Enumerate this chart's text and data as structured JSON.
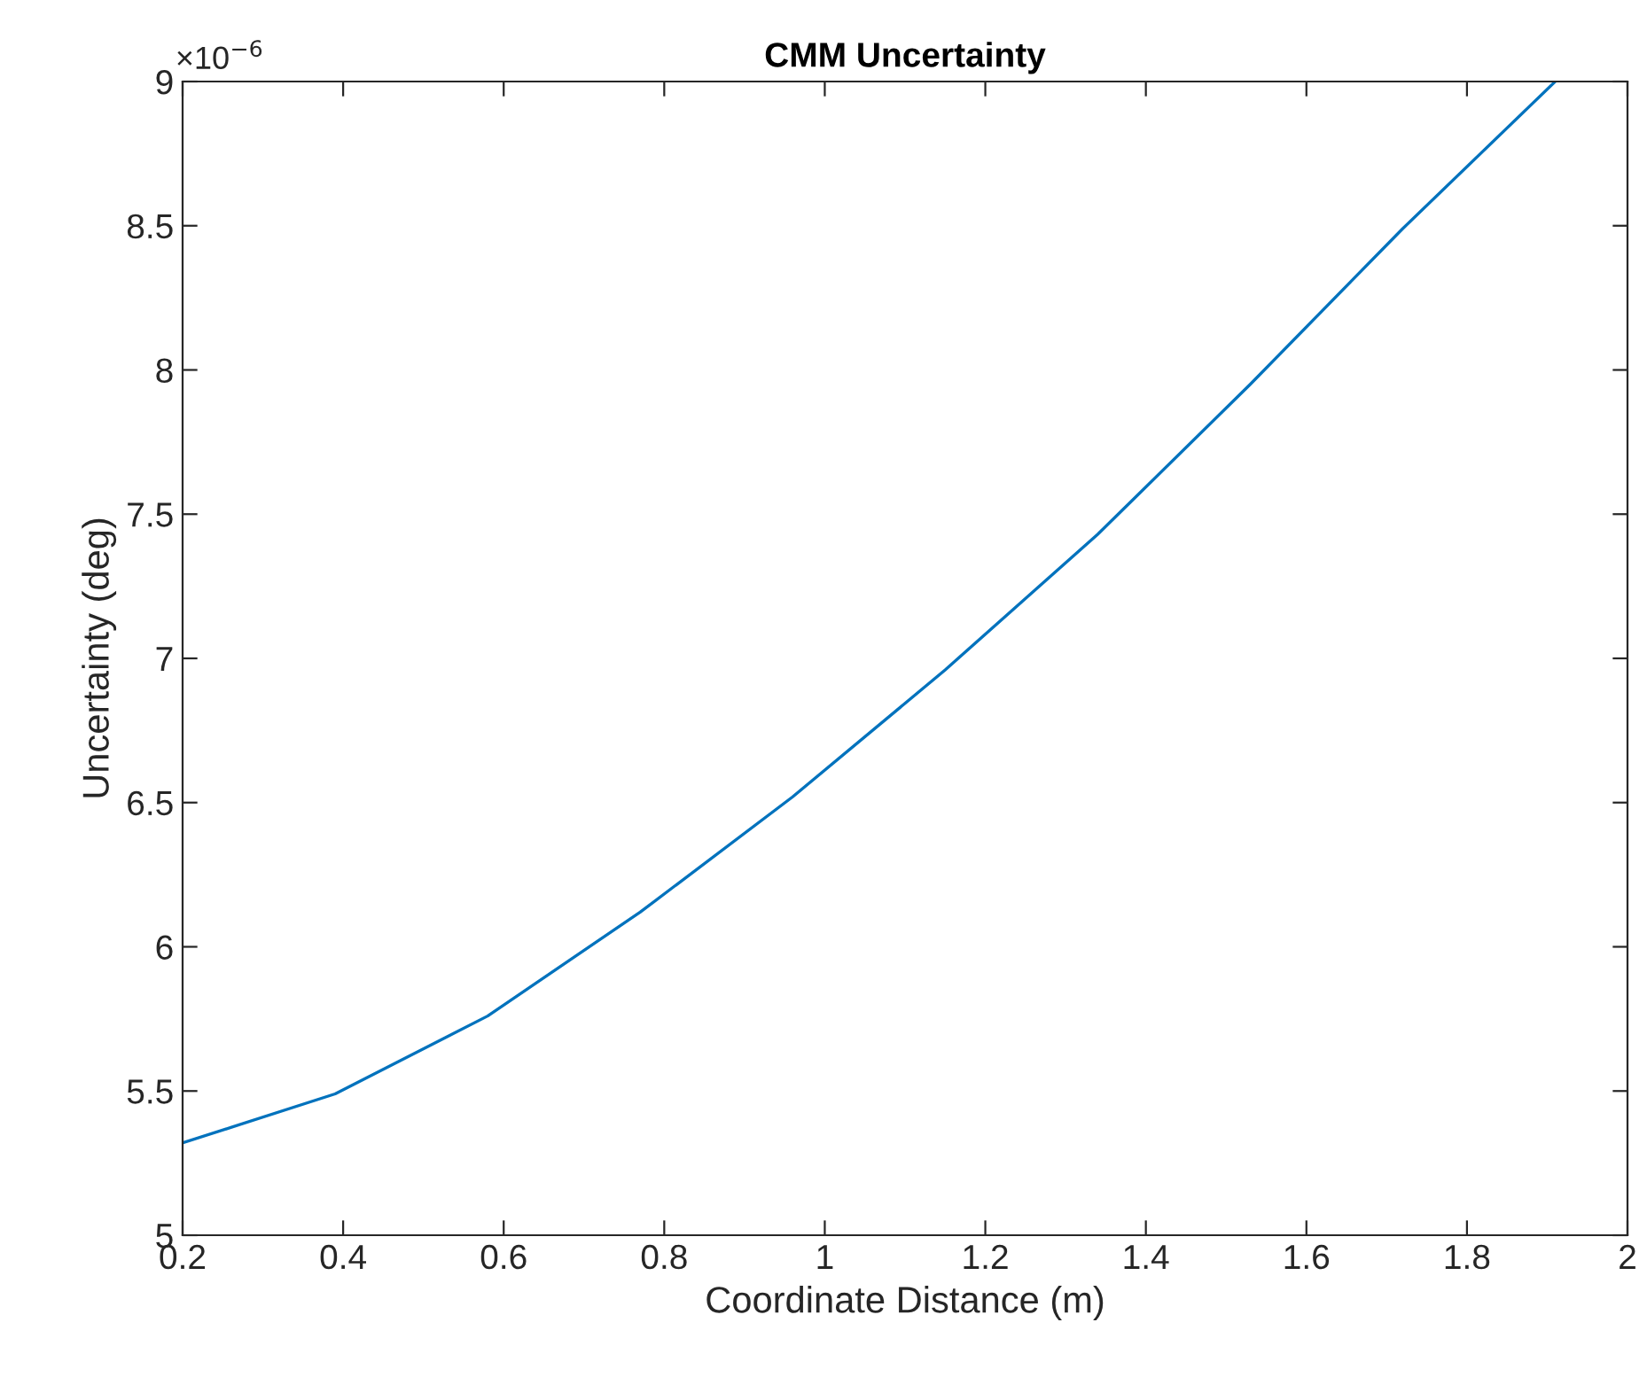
{
  "chart_data": {
    "type": "line",
    "title": "CMM Uncertainty",
    "xlabel": "Coordinate Distance (m)",
    "ylabel": "Uncertainty (deg)",
    "annotations": [
      "×10$^{−6}$"
    ],
    "x": [
      0.2,
      0.39,
      0.58,
      0.77,
      0.96,
      1.15,
      1.34,
      1.53,
      1.72,
      1.91
    ],
    "series": [
      {
        "color": "#0072bd",
        "values": [
          5.32,
          5.49,
          5.76,
          6.12,
          6.52,
          6.96,
          7.43,
          7.95,
          8.49,
          9.0
        ]
      }
    ],
    "xlim": [
      0.2,
      2
    ],
    "xticks": [
      0.2,
      0.4,
      0.6,
      0.8,
      1,
      1.2,
      1.4,
      1.6,
      1.8,
      2
    ],
    "ylim": [
      5,
      9
    ],
    "yticks": [
      5,
      5.5,
      6,
      6.5,
      7,
      7.5,
      8,
      8.5,
      9
    ],
    "grid": false,
    "legend": false
  }
}
